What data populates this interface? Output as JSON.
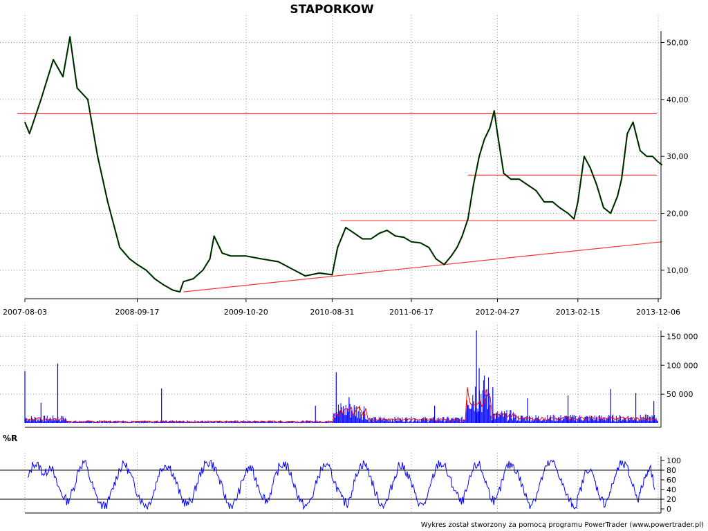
{
  "colors": {
    "background": "#ffffff",
    "price_line": "#000000",
    "price_up": "#006600",
    "support_lines": "#ff3333",
    "volume_bars": "#0000ff",
    "volume_avg": "#ff0000",
    "wpr_line": "#0000ff",
    "grid": "#999999"
  },
  "chart_data": [
    {
      "type": "line",
      "title": "STAPORKOW",
      "x_tick_labels": [
        "2007-08-03",
        "2008-09-17",
        "2009-10-20",
        "2010-08-31",
        "2011-06-17",
        "2012-04-27",
        "2013-02-15",
        "2013-12-06"
      ],
      "ylim": [
        5,
        52
      ],
      "y_ticks": [
        10,
        20,
        30,
        40,
        50
      ],
      "y_tick_labels": [
        "10,00",
        "20,00",
        "30,00",
        "40,00",
        "50,00"
      ],
      "y_axis_side": "right",
      "grid": true,
      "series": [
        {
          "x": [
            "2007-08-03",
            "2007-08-20",
            "2007-10-01",
            "2007-11-15",
            "2007-12-20",
            "2008-01-15",
            "2008-02-10",
            "2008-03-20",
            "2008-04-25",
            "2008-06-01",
            "2008-07-15",
            "2008-08-20",
            "2008-09-17",
            "2008-10-20",
            "2008-11-20",
            "2008-12-20",
            "2009-01-25",
            "2009-02-20",
            "2009-03-05",
            "2009-04-10",
            "2009-05-15",
            "2009-06-10",
            "2009-06-25",
            "2009-07-25",
            "2009-08-25",
            "2009-10-20",
            "2009-12-15",
            "2010-02-15",
            "2010-04-15",
            "2010-05-25",
            "2010-07-15",
            "2010-08-31",
            "2010-09-20",
            "2010-10-20",
            "2010-11-20",
            "2010-12-20",
            "2011-01-20",
            "2011-02-20",
            "2011-03-20",
            "2011-04-20",
            "2011-05-20",
            "2011-06-17",
            "2011-07-20",
            "2011-08-20",
            "2011-09-15",
            "2011-10-15",
            "2011-11-10",
            "2011-12-01",
            "2011-12-20",
            "2012-01-10",
            "2012-01-30",
            "2012-02-20",
            "2012-03-10",
            "2012-03-30",
            "2012-04-15",
            "2012-04-27",
            "2012-05-20",
            "2012-06-15",
            "2012-07-15",
            "2012-08-15",
            "2012-09-15",
            "2012-10-15",
            "2012-11-15",
            "2012-12-10",
            "2013-01-10",
            "2013-02-01",
            "2013-02-15",
            "2013-03-10",
            "2013-04-01",
            "2013-04-25",
            "2013-05-20",
            "2013-06-15",
            "2013-07-10",
            "2013-07-25",
            "2013-08-15",
            "2013-09-05",
            "2013-10-01",
            "2013-10-25",
            "2013-11-15",
            "2013-12-06",
            "2013-12-20"
          ],
          "y": [
            36,
            34,
            40,
            47,
            44,
            51,
            42,
            40,
            30,
            22,
            14,
            12,
            11,
            10,
            8.5,
            7.5,
            6.5,
            6.2,
            8.0,
            8.5,
            10,
            12,
            16,
            13,
            12.5,
            12.5,
            12.0,
            11.5,
            10,
            9.0,
            9.5,
            9.2,
            14,
            17.5,
            16.5,
            15.5,
            15.5,
            16.5,
            17,
            16.0,
            15.8,
            15.0,
            14.8,
            14.0,
            12.0,
            11.0,
            12.5,
            14,
            16,
            19,
            25,
            30,
            33,
            35,
            38,
            34,
            27,
            26,
            26,
            25,
            24,
            22,
            22,
            21,
            20,
            19,
            22,
            30,
            28,
            25,
            21,
            20,
            23,
            26,
            34,
            36,
            31,
            30,
            30,
            29,
            28.5
          ]
        }
      ],
      "horizontal_lines": [
        37.5,
        26.7,
        18.7
      ],
      "trendline": {
        "from": [
          "2009-03-05",
          6.2
        ],
        "to": [
          "2013-12-20",
          15.0
        ]
      }
    },
    {
      "type": "bar",
      "x_range": [
        "2007-08-03",
        "2013-12-20"
      ],
      "ylim": [
        0,
        160000
      ],
      "y_ticks": [
        50000,
        100000,
        150000
      ],
      "y_tick_labels": [
        "50 000",
        "100 000",
        "150 000"
      ],
      "y_axis_side": "right",
      "grid": true,
      "spikes": [
        {
          "x": "2007-08-03",
          "value": 90000
        },
        {
          "x": "2007-10-01",
          "value": 35000
        },
        {
          "x": "2007-12-01",
          "value": 103000
        },
        {
          "x": "2008-12-15",
          "value": 60000
        },
        {
          "x": "2010-07-01",
          "value": 30000
        },
        {
          "x": "2010-09-15",
          "value": 88000
        },
        {
          "x": "2010-11-01",
          "value": 45000
        },
        {
          "x": "2011-09-10",
          "value": 30000
        },
        {
          "x": "2012-02-10",
          "value": 160000
        },
        {
          "x": "2012-02-20",
          "value": 95000
        },
        {
          "x": "2012-04-10",
          "value": 62000
        },
        {
          "x": "2012-08-15",
          "value": 43000
        },
        {
          "x": "2013-01-10",
          "value": 48000
        },
        {
          "x": "2013-06-15",
          "value": 59000
        },
        {
          "x": "2013-09-15",
          "value": 52000
        },
        {
          "x": "2013-11-20",
          "value": 38000
        }
      ],
      "avg_segments": [
        {
          "from": "2007-08-03",
          "to": "2007-12-31",
          "value": 7000
        },
        {
          "from": "2008-01-01",
          "to": "2010-08-31",
          "value": 2500
        },
        {
          "from": "2010-09-01",
          "to": "2010-12-31",
          "value": 20000
        },
        {
          "from": "2011-01-01",
          "to": "2011-12-31",
          "value": 6000
        },
        {
          "from": "2012-01-01",
          "to": "2012-03-31",
          "value": 45000
        },
        {
          "from": "2012-04-01",
          "to": "2012-06-30",
          "value": 12000
        },
        {
          "from": "2012-07-01",
          "to": "2013-12-20",
          "value": 8000
        }
      ]
    },
    {
      "type": "line",
      "label": "%R",
      "x_range": [
        "2007-08-03",
        "2013-12-20"
      ],
      "ylim": [
        0,
        100
      ],
      "y_ticks": [
        0,
        20,
        40,
        60,
        80,
        100
      ],
      "y_tick_labels": [
        "0",
        "20",
        "40",
        "60",
        "80",
        "100"
      ],
      "y_axis_side": "right",
      "reference_lines": [
        20,
        80
      ],
      "series": [
        {
          "values": [
            60,
            95,
            88,
            70,
            92,
            55,
            30,
            15,
            40,
            85,
            98,
            60,
            25,
            5,
            10,
            45,
            80,
            95,
            70,
            40,
            15,
            5,
            30,
            75,
            92,
            85,
            55,
            20,
            8,
            25,
            65,
            90,
            98,
            80,
            45,
            12,
            5,
            35,
            70,
            88,
            60,
            30,
            15,
            50,
            85,
            95,
            75,
            40,
            10,
            5,
            30,
            70,
            92,
            80,
            50,
            20,
            10,
            45,
            85,
            96,
            70,
            30,
            8,
            15,
            55,
            90,
            85,
            60,
            25,
            5,
            20,
            65,
            95,
            90,
            60,
            35,
            10,
            40,
            80,
            95,
            65,
            30,
            12,
            50,
            88,
            92,
            70,
            35,
            8,
            25,
            60,
            90,
            98,
            75,
            40,
            15,
            5,
            45,
            85,
            70,
            35,
            10,
            30,
            70,
            95,
            85,
            50,
            20,
            60,
            90,
            40
          ]
        }
      ]
    }
  ],
  "footer": {
    "text": "Wykres został stworzony za pomocą programu PowerTrader (www.powertrader.pl)"
  }
}
